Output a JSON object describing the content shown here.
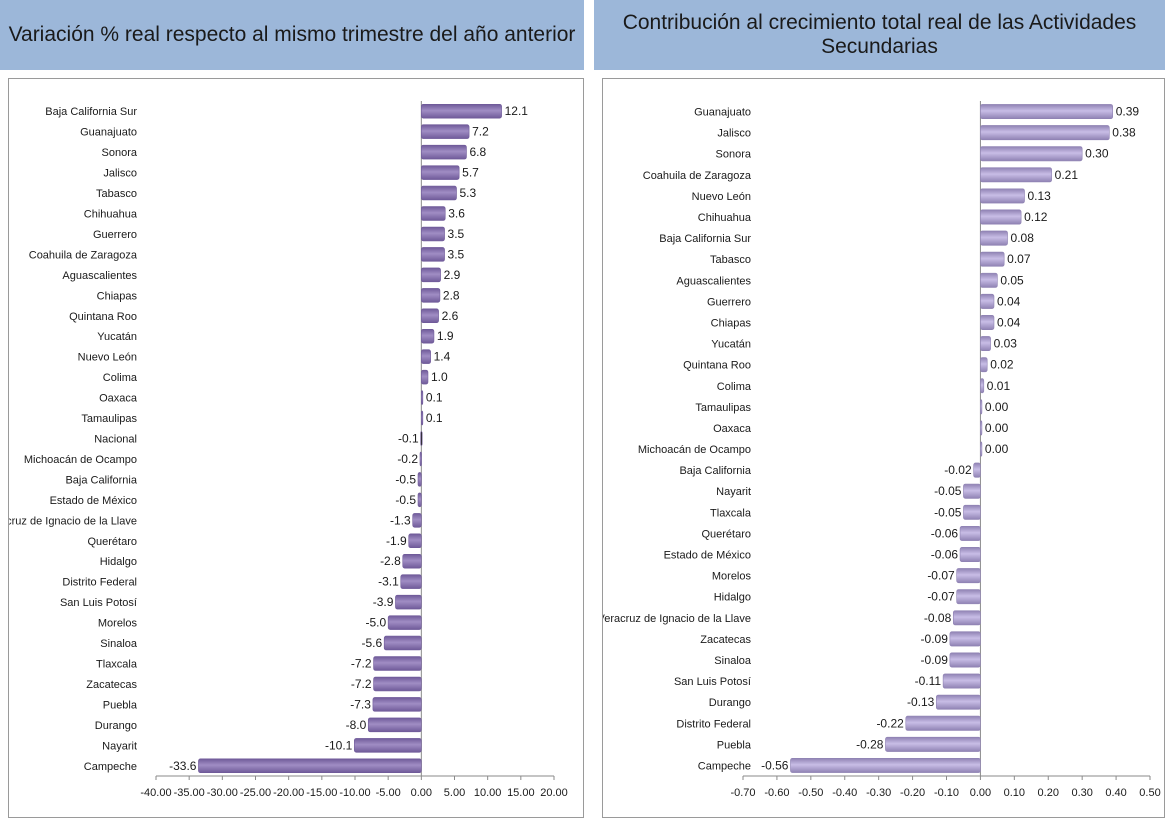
{
  "chart_data": [
    {
      "type": "bar",
      "orientation": "horizontal",
      "title": "Variación % real respecto al mismo trimestre del año anterior",
      "xlim": [
        -40,
        20
      ],
      "xticks": [
        "-40.00",
        "-35.00",
        "-30.00",
        "-25.00",
        "-20.00",
        "-15.00",
        "-10.00",
        "-5.00",
        "0.00",
        "5.00",
        "10.00",
        "15.00",
        "20.00"
      ],
      "xtick_values": [
        -40,
        -35,
        -30,
        -25,
        -20,
        -15,
        -10,
        -5,
        0,
        5,
        10,
        15,
        20
      ],
      "categories": [
        "Baja California Sur",
        "Guanajuato",
        "Sonora",
        "Jalisco",
        "Tabasco",
        "Chihuahua",
        "Guerrero",
        "Coahuila de Zaragoza",
        "Aguascalientes",
        "Chiapas",
        "Quintana Roo",
        "Yucatán",
        "Nuevo León",
        "Colima",
        "Oaxaca",
        "Tamaulipas",
        "Nacional",
        "Michoacán de Ocampo",
        "Baja California",
        "Estado de México",
        "Veracruz de Ignacio de la Llave",
        "Querétaro",
        "Hidalgo",
        "Distrito Federal",
        "San Luis Potosí",
        "Morelos",
        "Sinaloa",
        "Tlaxcala",
        "Zacatecas",
        "Puebla",
        "Durango",
        "Nayarit",
        "Campeche"
      ],
      "values": [
        12.1,
        7.2,
        6.8,
        5.7,
        5.3,
        3.6,
        3.5,
        3.5,
        2.9,
        2.8,
        2.6,
        1.9,
        1.4,
        1.0,
        0.1,
        0.1,
        -0.1,
        -0.2,
        -0.5,
        -0.5,
        -1.3,
        -1.9,
        -2.8,
        -3.1,
        -3.9,
        -5.0,
        -5.6,
        -7.2,
        -7.2,
        -7.3,
        -8.0,
        -10.1,
        -33.6
      ],
      "labels": [
        "12.1",
        "7.2",
        "6.8",
        "5.7",
        "5.3",
        "3.6",
        "3.5",
        "3.5",
        "2.9",
        "2.8",
        "2.6",
        "1.9",
        "1.4",
        "1.0",
        "0.1",
        "0.1",
        "-0.1",
        "-0.2",
        "-0.5",
        "-0.5",
        "-1.3",
        "-1.9",
        "-2.8",
        "-3.1",
        "-3.9",
        "-5.0",
        "-5.6",
        "-7.2",
        "-7.2",
        "-7.3",
        "-8.0",
        "-10.1",
        "-33.6"
      ],
      "highlight": "Nacional",
      "colors": {
        "bar": "#a08dc4",
        "bar_dark": "#6f5a99",
        "highlight": "#2a2a2a"
      }
    },
    {
      "type": "bar",
      "orientation": "horizontal",
      "title": "Contribución al crecimiento total real de las Actividades Secundarias",
      "xlim": [
        -0.7,
        0.5
      ],
      "xticks": [
        "-0.70",
        "-0.60",
        "-0.50",
        "-0.40",
        "-0.30",
        "-0.20",
        "-0.10",
        "0.00",
        "0.10",
        "0.20",
        "0.30",
        "0.40",
        "0.50"
      ],
      "xtick_values": [
        -0.7,
        -0.6,
        -0.5,
        -0.4,
        -0.3,
        -0.2,
        -0.1,
        0,
        0.1,
        0.2,
        0.3,
        0.4,
        0.5
      ],
      "categories": [
        "Guanajuato",
        "Jalisco",
        "Sonora",
        "Coahuila de Zaragoza",
        "Nuevo León",
        "Chihuahua",
        "Baja California Sur",
        "Tabasco",
        "Aguascalientes",
        "Guerrero",
        "Chiapas",
        "Yucatán",
        "Quintana Roo",
        "Colima",
        "Tamaulipas",
        "Oaxaca",
        "Michoacán de Ocampo",
        "Baja California",
        "Nayarit",
        "Tlaxcala",
        "Querétaro",
        "Estado de México",
        "Morelos",
        "Hidalgo",
        "Veracruz de Ignacio de la Llave",
        "Zacatecas",
        "Sinaloa",
        "San Luis Potosí",
        "Durango",
        "Distrito Federal",
        "Puebla",
        "Campeche"
      ],
      "values": [
        0.39,
        0.38,
        0.3,
        0.21,
        0.13,
        0.12,
        0.08,
        0.07,
        0.05,
        0.04,
        0.04,
        0.03,
        0.02,
        0.01,
        0.0,
        0.0,
        0.0,
        -0.02,
        -0.05,
        -0.05,
        -0.06,
        -0.06,
        -0.07,
        -0.07,
        -0.08,
        -0.09,
        -0.09,
        -0.11,
        -0.13,
        -0.22,
        -0.28,
        -0.56
      ],
      "labels": [
        "0.39",
        "0.38",
        "0.30",
        "0.21",
        "0.13",
        "0.12",
        "0.08",
        "0.07",
        "0.05",
        "0.04",
        "0.04",
        "0.03",
        "0.02",
        "0.01",
        "0.00",
        "0.00",
        "0.00",
        "-0.02",
        "-0.05",
        "-0.05",
        "-0.06",
        "-0.06",
        "-0.07",
        "-0.07",
        "-0.08",
        "-0.09",
        "-0.09",
        "-0.11",
        "-0.13",
        "-0.22",
        "-0.28",
        "-0.56"
      ],
      "colors": {
        "bar": "#c8bde6",
        "bar_dark": "#8f82b3"
      }
    }
  ]
}
